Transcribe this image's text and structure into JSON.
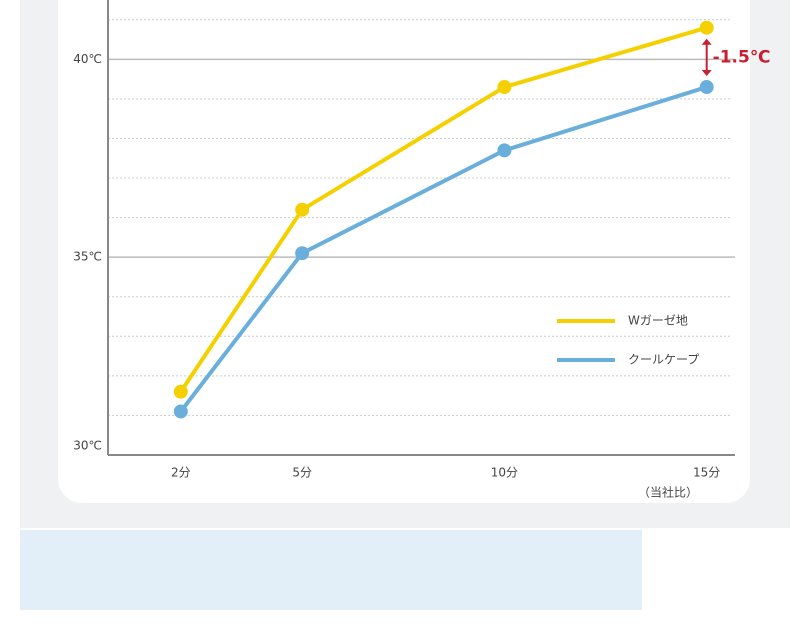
{
  "chart_data": {
    "type": "line",
    "x": [
      2,
      5,
      10,
      15
    ],
    "xlim": [
      0.2,
      15.7
    ],
    "xticks": [
      {
        "value": 2,
        "label": "2分"
      },
      {
        "value": 5,
        "label": "5分"
      },
      {
        "value": 10,
        "label": "10分"
      },
      {
        "value": 15,
        "label": "15分"
      }
    ],
    "x_note": "（当社比）",
    "ylim": [
      30,
      41.5
    ],
    "yticks": [
      {
        "value": 30,
        "label": "30℃"
      },
      {
        "value": 35,
        "label": "35℃"
      },
      {
        "value": 40,
        "label": "40℃"
      }
    ],
    "minor_yticks": [
      31,
      32,
      33,
      34,
      36,
      37,
      38,
      39,
      41
    ],
    "grid": true,
    "legend": "lower right",
    "series": [
      {
        "name": "Wガーゼ地",
        "color": "#f5d000",
        "values": [
          31.6,
          36.2,
          39.3,
          40.8
        ]
      },
      {
        "name": "クールケープ",
        "color": "#6aaedb",
        "values": [
          31.1,
          35.1,
          37.7,
          39.3
        ]
      }
    ],
    "annotation": {
      "text": "-1.5℃",
      "color": "#c81e32"
    }
  }
}
